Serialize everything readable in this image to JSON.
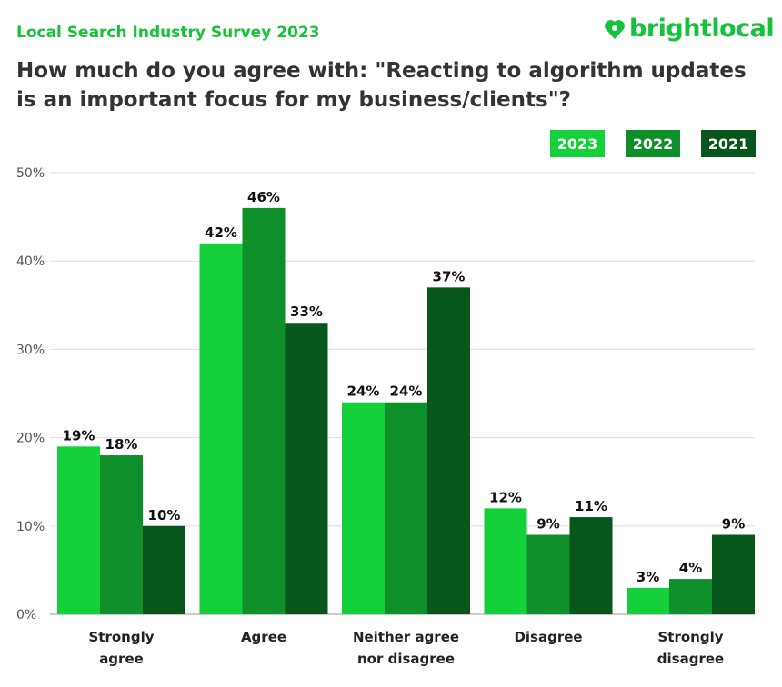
{
  "header": {
    "survey": "Local Search Industry Survey 2023",
    "logo_text": "brightlocal",
    "logo_icon": "heart-pin-icon"
  },
  "chart_data": {
    "type": "bar",
    "title": "How much do you agree with: \"Reacting to algorithm updates is an important focus for my business/clients\"?",
    "categories": [
      [
        "Strongly",
        "agree"
      ],
      [
        "Agree"
      ],
      [
        "Neither agree",
        "nor disagree"
      ],
      [
        "Disagree"
      ],
      [
        "Strongly",
        "disagree"
      ]
    ],
    "series": [
      {
        "name": "2023",
        "color": "#13d03b",
        "values": [
          19,
          42,
          24,
          12,
          3
        ]
      },
      {
        "name": "2022",
        "color": "#0e8f2a",
        "values": [
          18,
          46,
          24,
          9,
          4
        ]
      },
      {
        "name": "2021",
        "color": "#07561c",
        "values": [
          10,
          33,
          37,
          11,
          9
        ]
      }
    ],
    "ylim": [
      0,
      50
    ],
    "yticks": [
      0,
      10,
      20,
      30,
      40,
      50
    ],
    "ytick_labels": [
      "0%",
      "10%",
      "20%",
      "30%",
      "40%",
      "50%"
    ],
    "value_suffix": "%",
    "grid": true,
    "legend_position": "top-right"
  }
}
